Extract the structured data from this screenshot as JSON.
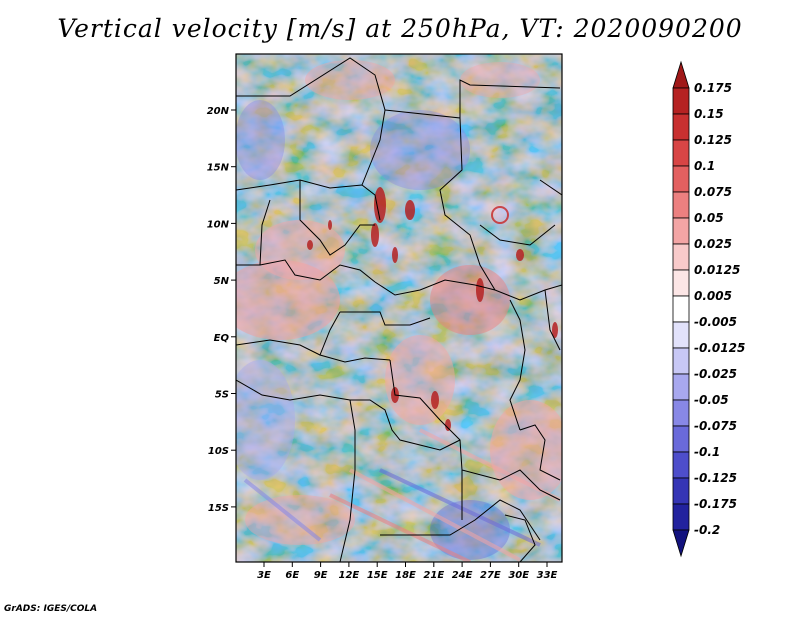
{
  "title": "Vertical velocity [m/s] at 250hPa, VT: 2020090200",
  "footer": "GrADS: IGES/COLA",
  "map": {
    "lat_ticks": [
      "20N",
      "15N",
      "10N",
      "5N",
      "EQ",
      "5S",
      "10S",
      "15S"
    ],
    "lon_ticks": [
      "3E",
      "6E",
      "9E",
      "12E",
      "15E",
      "18E",
      "21E",
      "24E",
      "27E",
      "30E",
      "33E"
    ]
  },
  "colorbar": {
    "labels": [
      "0.175",
      "0.15",
      "0.125",
      "0.1",
      "0.075",
      "0.05",
      "0.025",
      "0.0125",
      "0.005",
      "-0.005",
      "-0.0125",
      "-0.025",
      "-0.05",
      "-0.075",
      "-0.1",
      "-0.125",
      "-0.175",
      "-0.2"
    ],
    "colors": [
      "#a01818",
      "#b52222",
      "#c83030",
      "#d84545",
      "#e36060",
      "#ec8080",
      "#f3a5a5",
      "#f8caca",
      "#fce6e6",
      "#ffffff",
      "#e2e2fb",
      "#c8c8f5",
      "#a8a8ee",
      "#8888e6",
      "#6a6ada",
      "#4e4ecb",
      "#3535b5",
      "#22229e",
      "#12127e"
    ]
  }
}
